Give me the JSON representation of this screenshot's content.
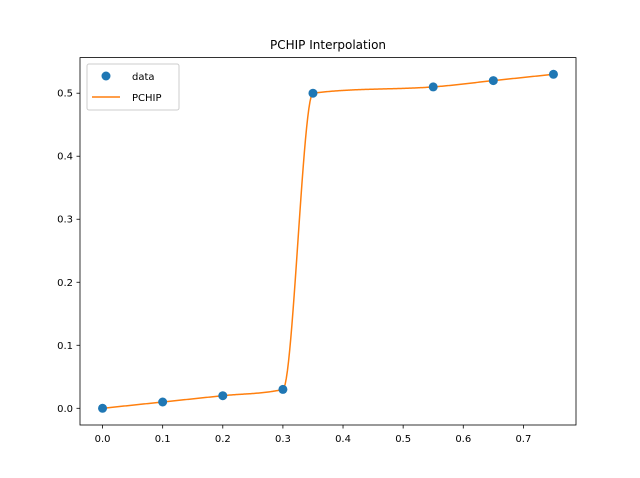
{
  "chart_data": {
    "type": "line",
    "title": "PCHIP Interpolation",
    "xlabel": "",
    "ylabel": "",
    "xlim": [
      -0.0375,
      0.7875
    ],
    "ylim": [
      -0.0265,
      0.5565
    ],
    "x_ticks": [
      "0.0",
      "0.1",
      "0.2",
      "0.3",
      "0.4",
      "0.5",
      "0.6",
      "0.7"
    ],
    "x_tick_values": [
      0.0,
      0.1,
      0.2,
      0.3,
      0.4,
      0.5,
      0.6,
      0.7
    ],
    "y_ticks": [
      "0.0",
      "0.1",
      "0.2",
      "0.3",
      "0.4",
      "0.5"
    ],
    "y_tick_values": [
      0.0,
      0.1,
      0.2,
      0.3,
      0.4,
      0.5
    ],
    "grid": false,
    "legend_position": "top-left",
    "series": [
      {
        "name": "data",
        "kind": "scatter",
        "color": "#1f77b4",
        "x": [
          0.0,
          0.1,
          0.2,
          0.3,
          0.35,
          0.55,
          0.65,
          0.75
        ],
        "y": [
          0.0,
          0.01,
          0.02,
          0.03,
          0.5,
          0.51,
          0.52,
          0.53
        ]
      },
      {
        "name": "PCHIP",
        "kind": "line",
        "color": "#ff7f0e",
        "x": [
          0.0,
          0.1,
          0.2,
          0.3,
          0.35,
          0.55,
          0.65,
          0.75
        ],
        "y": [
          0.0,
          0.01,
          0.02,
          0.03,
          0.5,
          0.51,
          0.52,
          0.53
        ]
      }
    ]
  }
}
